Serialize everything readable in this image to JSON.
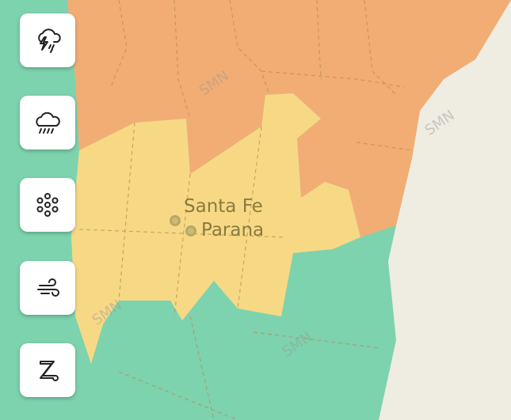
{
  "colors": {
    "low": "#7dd3ae",
    "yellow": "#f7d985",
    "orange": "#f2ad74",
    "outside": "#efece2",
    "label": "#8a7a40"
  },
  "cities": [
    {
      "name": "Santa Fe"
    },
    {
      "name": "Parana"
    }
  ],
  "watermark": "SMN",
  "alert_buttons": [
    {
      "icon": "thunderstorm-icon"
    },
    {
      "icon": "rain-icon"
    },
    {
      "icon": "snow-icon"
    },
    {
      "icon": "wind-icon"
    },
    {
      "icon": "zonda-icon"
    }
  ]
}
